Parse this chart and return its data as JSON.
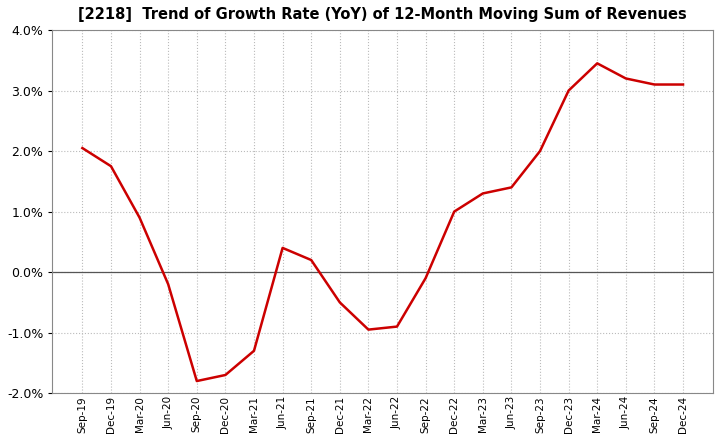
{
  "title": "[2218]  Trend of Growth Rate (YoY) of 12-Month Moving Sum of Revenues",
  "line_color": "#cc0000",
  "background_color": "#ffffff",
  "grid_color": "#bbbbbb",
  "ylim": [
    -0.02,
    0.04
  ],
  "yticks": [
    -0.02,
    -0.01,
    0.0,
    0.01,
    0.02,
    0.03,
    0.04
  ],
  "x_labels": [
    "Sep-19",
    "Dec-19",
    "Mar-20",
    "Jun-20",
    "Sep-20",
    "Dec-20",
    "Mar-21",
    "Jun-21",
    "Sep-21",
    "Dec-21",
    "Mar-22",
    "Jun-22",
    "Sep-22",
    "Dec-22",
    "Mar-23",
    "Jun-23",
    "Sep-23",
    "Dec-23",
    "Mar-24",
    "Jun-24",
    "Sep-24",
    "Dec-24"
  ],
  "values": [
    0.0205,
    0.0175,
    0.009,
    -0.002,
    -0.018,
    -0.017,
    -0.013,
    0.004,
    0.002,
    -0.005,
    -0.0095,
    -0.009,
    -0.001,
    0.01,
    0.013,
    0.014,
    0.02,
    0.03,
    0.0345,
    0.032,
    0.031,
    0.031
  ]
}
